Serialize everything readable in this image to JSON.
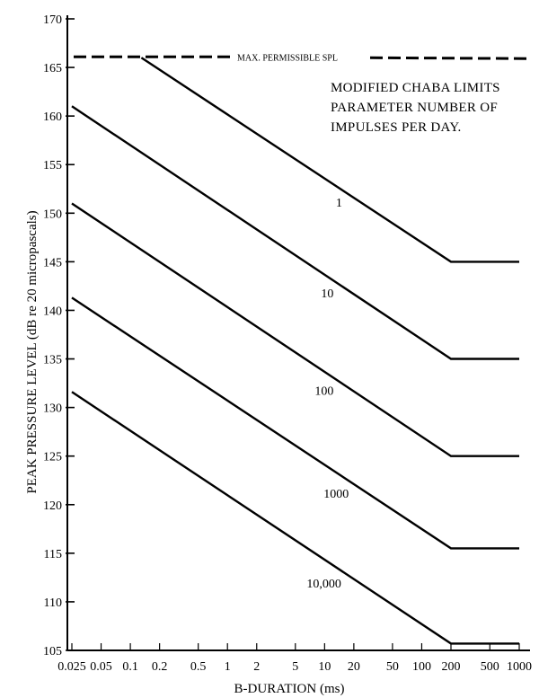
{
  "chart_data": {
    "type": "line",
    "title": "",
    "xlabel": "B-DURATION (ms)",
    "ylabel": "PEAK PRESSURE LEVEL (dB re 20 micropascals)",
    "x_scale": "log",
    "ylim": [
      105,
      170
    ],
    "y_ticks": [
      105,
      110,
      115,
      120,
      125,
      130,
      135,
      140,
      145,
      150,
      155,
      160,
      165,
      170
    ],
    "x_ticks": [
      {
        "value": 0.025,
        "label": "0.025"
      },
      {
        "value": 0.05,
        "label": "0.05"
      },
      {
        "value": 0.1,
        "label": "0.1"
      },
      {
        "value": 0.2,
        "label": "0.2"
      },
      {
        "value": 0.5,
        "label": "0.5"
      },
      {
        "value": 1,
        "label": "1"
      },
      {
        "value": 2,
        "label": "2"
      },
      {
        "value": 5,
        "label": "5"
      },
      {
        "value": 10,
        "label": "10"
      },
      {
        "value": 20,
        "label": "20"
      },
      {
        "value": 50,
        "label": "50"
      },
      {
        "value": 100,
        "label": "100"
      },
      {
        "value": 200,
        "label": "200"
      },
      {
        "value": 500,
        "label": "500"
      },
      {
        "value": 1000,
        "label": "1000"
      }
    ],
    "grid": false,
    "max_line": {
      "label": "MAX. PERMISSIBLE SPL",
      "y": 166
    },
    "annotation": [
      "MODIFIED CHABA LIMITS",
      "PARAMETER NUMBER OF",
      "IMPULSES PER DAY."
    ],
    "series": [
      {
        "name": "1",
        "points": [
          {
            "x": 0.13,
            "y": 166
          },
          {
            "x": 200,
            "y": 145
          },
          {
            "x": 1000,
            "y": 145
          }
        ]
      },
      {
        "name": "10",
        "points": [
          {
            "x": 0.025,
            "y": 161
          },
          {
            "x": 200,
            "y": 135
          },
          {
            "x": 1000,
            "y": 135
          }
        ]
      },
      {
        "name": "100",
        "points": [
          {
            "x": 0.025,
            "y": 151
          },
          {
            "x": 200,
            "y": 125
          },
          {
            "x": 1000,
            "y": 125
          }
        ]
      },
      {
        "name": "1000",
        "points": [
          {
            "x": 0.025,
            "y": 141.3
          },
          {
            "x": 200,
            "y": 115.5
          },
          {
            "x": 1000,
            "y": 115.5
          }
        ]
      },
      {
        "name": "10,000",
        "points": [
          {
            "x": 0.025,
            "y": 131.6
          },
          {
            "x": 200,
            "y": 105.7
          },
          {
            "x": 1000,
            "y": 105.7
          }
        ]
      }
    ]
  }
}
